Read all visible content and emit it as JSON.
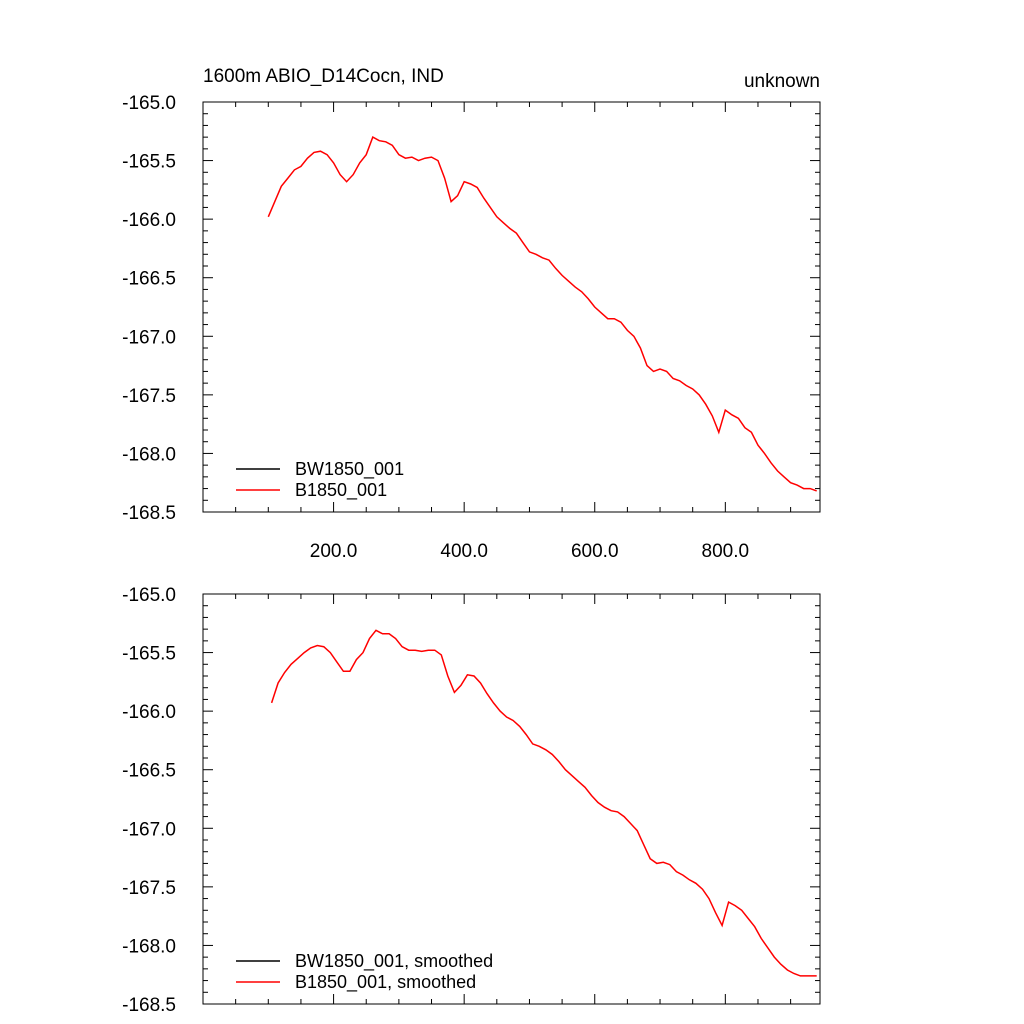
{
  "header": {
    "left_title": "1600m ABIO_D14Cocn, IND",
    "right_title": "unknown"
  },
  "colors": {
    "BW1850_001": "#000000",
    "B1850_001": "#ff0000"
  },
  "chart_data": [
    {
      "type": "line",
      "xlim": [
        0,
        945
      ],
      "ylim": [
        -168.5,
        -165.0
      ],
      "yticks": [
        -165.0,
        -165.5,
        -166.0,
        -166.5,
        -167.0,
        -167.5,
        -168.0,
        -168.5
      ],
      "ytick_labels": [
        "-165.0",
        "-165.5",
        "-166.0",
        "-166.5",
        "-167.0",
        "-167.5",
        "-168.0",
        "-168.5"
      ],
      "xticks": [
        200,
        400,
        600,
        800
      ],
      "xtick_labels": [
        "200.0",
        "400.0",
        "600.0",
        "800.0"
      ],
      "legend_position": "bottom-left",
      "series": [
        {
          "name": "BW1850_001",
          "color": "#000000",
          "x": [],
          "y": []
        },
        {
          "name": "B1850_001",
          "color": "#ff0000",
          "x": [
            100,
            110,
            120,
            130,
            140,
            150,
            160,
            170,
            180,
            190,
            200,
            210,
            220,
            230,
            240,
            250,
            260,
            270,
            280,
            290,
            300,
            310,
            320,
            330,
            340,
            350,
            360,
            370,
            380,
            390,
            400,
            410,
            420,
            430,
            440,
            450,
            460,
            470,
            480,
            490,
            500,
            510,
            520,
            530,
            540,
            550,
            560,
            570,
            580,
            590,
            600,
            610,
            620,
            630,
            640,
            650,
            660,
            670,
            680,
            690,
            700,
            710,
            720,
            730,
            740,
            750,
            760,
            770,
            780,
            790,
            800,
            810,
            820,
            830,
            840,
            850,
            860,
            870,
            880,
            890,
            900,
            910,
            920,
            930,
            940
          ],
          "y": [
            -165.98,
            -165.85,
            -165.72,
            -165.65,
            -165.58,
            -165.55,
            -165.48,
            -165.43,
            -165.42,
            -165.45,
            -165.52,
            -165.62,
            -165.68,
            -165.62,
            -165.52,
            -165.45,
            -165.3,
            -165.33,
            -165.34,
            -165.37,
            -165.45,
            -165.48,
            -165.47,
            -165.5,
            -165.48,
            -165.47,
            -165.5,
            -165.65,
            -165.85,
            -165.8,
            -165.68,
            -165.7,
            -165.73,
            -165.82,
            -165.9,
            -165.98,
            -166.03,
            -166.08,
            -166.12,
            -166.2,
            -166.28,
            -166.3,
            -166.33,
            -166.35,
            -166.42,
            -166.48,
            -166.53,
            -166.58,
            -166.62,
            -166.68,
            -166.75,
            -166.8,
            -166.85,
            -166.85,
            -166.88,
            -166.95,
            -167.0,
            -167.1,
            -167.25,
            -167.3,
            -167.28,
            -167.3,
            -167.36,
            -167.38,
            -167.42,
            -167.45,
            -167.5,
            -167.58,
            -167.68,
            -167.82,
            -167.63,
            -167.67,
            -167.7,
            -167.78,
            -167.82,
            -167.93,
            -168.0,
            -168.08,
            -168.15,
            -168.2,
            -168.25,
            -168.27,
            -168.3,
            -168.3,
            -168.32
          ]
        }
      ]
    },
    {
      "type": "line",
      "xlim": [
        0,
        945
      ],
      "ylim": [
        -168.5,
        -165.0
      ],
      "yticks": [
        -165.0,
        -165.5,
        -166.0,
        -166.5,
        -167.0,
        -167.5,
        -168.0,
        -168.5
      ],
      "ytick_labels": [
        "-165.0",
        "-165.5",
        "-166.0",
        "-166.5",
        "-167.0",
        "-167.5",
        "-168.0",
        "-168.5"
      ],
      "xticks": [
        200,
        400,
        600,
        800
      ],
      "xtick_labels": [
        "",
        "",
        "",
        ""
      ],
      "legend_position": "bottom-left",
      "series": [
        {
          "name": "BW1850_001, smoothed",
          "color": "#000000",
          "x": [],
          "y": []
        },
        {
          "name": "B1850_001, smoothed",
          "color": "#ff0000",
          "x": [
            105,
            115,
            125,
            135,
            145,
            155,
            165,
            175,
            185,
            195,
            205,
            215,
            225,
            235,
            245,
            255,
            265,
            275,
            285,
            295,
            305,
            315,
            325,
            335,
            345,
            355,
            365,
            375,
            385,
            395,
            405,
            415,
            425,
            435,
            445,
            455,
            465,
            475,
            485,
            495,
            505,
            515,
            525,
            535,
            545,
            555,
            565,
            575,
            585,
            595,
            605,
            615,
            625,
            635,
            645,
            655,
            665,
            675,
            685,
            695,
            705,
            715,
            725,
            735,
            745,
            755,
            765,
            775,
            785,
            795,
            805,
            815,
            825,
            835,
            845,
            855,
            865,
            875,
            885,
            895,
            905,
            915,
            925,
            935,
            940
          ],
          "y": [
            -165.93,
            -165.76,
            -165.67,
            -165.6,
            -165.55,
            -165.5,
            -165.46,
            -165.44,
            -165.45,
            -165.5,
            -165.58,
            -165.66,
            -165.66,
            -165.56,
            -165.5,
            -165.38,
            -165.31,
            -165.34,
            -165.34,
            -165.38,
            -165.45,
            -165.48,
            -165.48,
            -165.49,
            -165.48,
            -165.48,
            -165.52,
            -165.7,
            -165.84,
            -165.78,
            -165.69,
            -165.7,
            -165.76,
            -165.85,
            -165.93,
            -166.0,
            -166.05,
            -166.08,
            -166.13,
            -166.2,
            -166.28,
            -166.3,
            -166.33,
            -166.37,
            -166.43,
            -166.5,
            -166.55,
            -166.6,
            -166.65,
            -166.72,
            -166.78,
            -166.82,
            -166.85,
            -166.86,
            -166.9,
            -166.96,
            -167.02,
            -167.14,
            -167.26,
            -167.3,
            -167.29,
            -167.31,
            -167.37,
            -167.4,
            -167.44,
            -167.47,
            -167.52,
            -167.6,
            -167.72,
            -167.83,
            -167.63,
            -167.66,
            -167.7,
            -167.77,
            -167.84,
            -167.94,
            -168.02,
            -168.1,
            -168.16,
            -168.21,
            -168.24,
            -168.26,
            -168.26,
            -168.26,
            -168.26
          ]
        }
      ]
    }
  ]
}
